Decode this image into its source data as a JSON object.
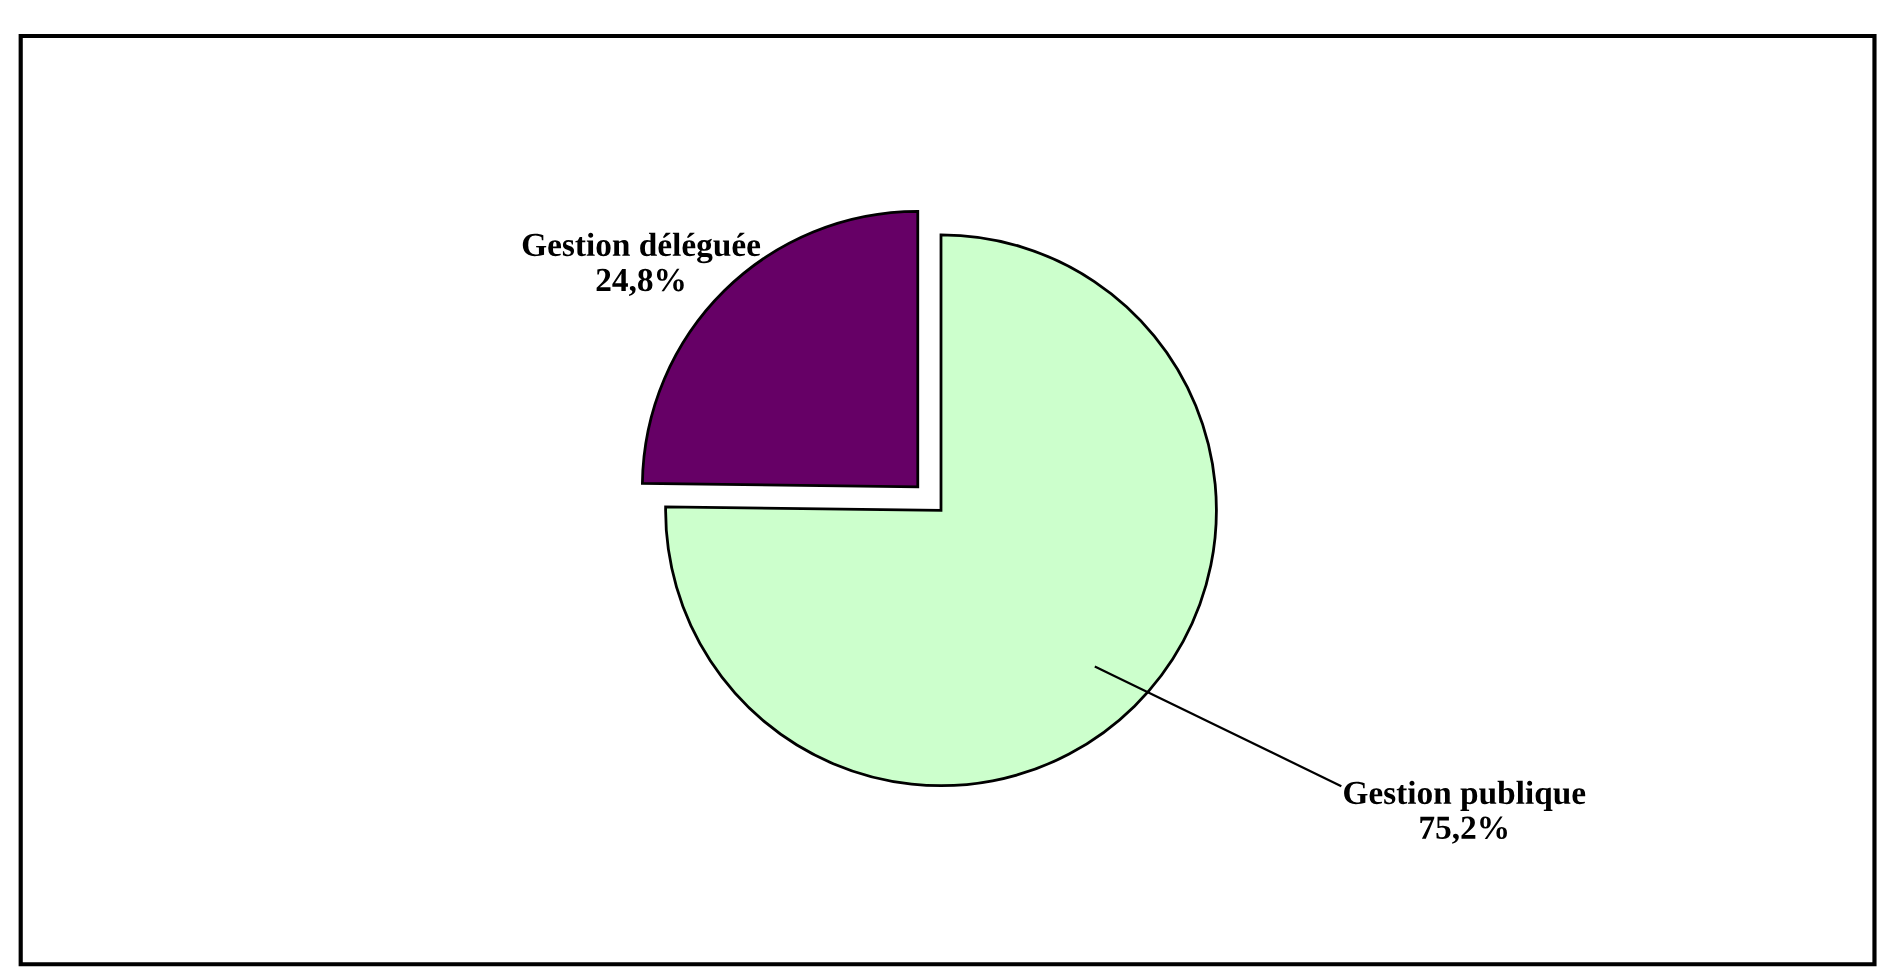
{
  "chart_data": {
    "type": "pie",
    "categories": [
      "Gestion déléguée",
      "Gestion publique"
    ],
    "values": [
      24.8,
      75.2
    ],
    "colors": [
      "#660066",
      "#ccffcc"
    ],
    "value_labels": [
      "24,8%",
      "75,2%"
    ]
  }
}
